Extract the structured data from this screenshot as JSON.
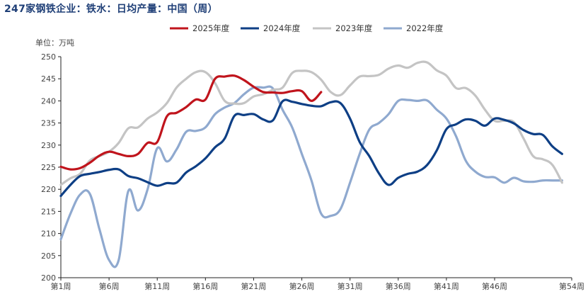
{
  "chart_data": {
    "type": "line",
    "title": "247家钢铁企业：铁水：日均产量：中国（周）",
    "unit_label": "单位：万吨",
    "xlabel": "",
    "ylabel": "",
    "x_ticks": [
      "第1周",
      "第6周",
      "第11周",
      "第16周",
      "第21周",
      "第26周",
      "第31周",
      "第36周",
      "第41周",
      "第46周",
      "第54周"
    ],
    "y_ticks": [
      "250",
      "245",
      "240",
      "235",
      "230",
      "225",
      "220",
      "215",
      "210",
      "205",
      "200"
    ],
    "ylim": [
      200,
      250
    ],
    "xlim": [
      1,
      54
    ],
    "grid": false,
    "legend_position": "top",
    "series": [
      {
        "name": "2025年度",
        "color": "#c0141c",
        "x": [
          1,
          2,
          3,
          4,
          5,
          6,
          7,
          8,
          9,
          10,
          11,
          12,
          13,
          14,
          15,
          16,
          17,
          18,
          19,
          20,
          21,
          22,
          23,
          24,
          25,
          26,
          27,
          28
        ],
        "values": [
          225.1,
          224.5,
          224.8,
          226.0,
          227.6,
          228.5,
          228.0,
          227.5,
          228.0,
          230.5,
          230.7,
          236.5,
          237.3,
          238.6,
          240.3,
          240.3,
          245.0,
          245.5,
          245.7,
          244.7,
          243.2,
          242.0,
          241.9,
          241.8,
          242.2,
          242.2,
          240.0,
          242.0
        ]
      },
      {
        "name": "2024年度",
        "color": "#0e3f85",
        "x": [
          1,
          2,
          3,
          4,
          5,
          6,
          7,
          8,
          9,
          10,
          11,
          12,
          13,
          14,
          15,
          16,
          17,
          18,
          19,
          20,
          21,
          22,
          23,
          24,
          25,
          26,
          27,
          28,
          29,
          30,
          31,
          32,
          33,
          34,
          35,
          36,
          37,
          38,
          39,
          40,
          41,
          42,
          43,
          44,
          45,
          46,
          47,
          48,
          49,
          50,
          51,
          52,
          53
        ],
        "values": [
          218.5,
          221.0,
          223.0,
          223.5,
          223.9,
          224.4,
          224.5,
          223.0,
          222.5,
          221.6,
          220.8,
          221.4,
          221.5,
          223.8,
          225.2,
          227.0,
          229.5,
          231.5,
          236.6,
          236.8,
          237.0,
          235.8,
          235.6,
          239.9,
          239.8,
          239.3,
          238.9,
          238.8,
          239.7,
          239.5,
          236.0,
          230.7,
          227.5,
          223.6,
          221.0,
          222.6,
          223.5,
          224.0,
          225.5,
          228.8,
          233.6,
          234.7,
          235.8,
          235.5,
          234.4,
          236.0,
          235.7,
          234.9,
          233.4,
          232.5,
          232.3,
          229.7,
          228.0
        ]
      },
      {
        "name": "2023年度",
        "color": "#c4c4c4",
        "x": [
          1,
          2,
          3,
          4,
          5,
          6,
          7,
          8,
          9,
          10,
          11,
          12,
          13,
          14,
          15,
          16,
          17,
          18,
          19,
          20,
          21,
          22,
          23,
          24,
          25,
          26,
          27,
          28,
          29,
          30,
          31,
          32,
          33,
          34,
          35,
          36,
          37,
          38,
          39,
          40,
          41,
          42,
          43,
          44,
          45,
          46,
          47,
          48,
          49,
          50,
          51,
          52,
          53
        ],
        "values": [
          221.0,
          222.5,
          223.5,
          226.5,
          227.5,
          228.5,
          230.5,
          233.8,
          234.0,
          236.0,
          237.4,
          239.5,
          243.0,
          245.0,
          246.5,
          246.5,
          244.0,
          240.0,
          239.4,
          239.5,
          241.0,
          241.5,
          242.5,
          243.0,
          246.3,
          246.8,
          246.5,
          244.8,
          242.0,
          241.3,
          243.5,
          245.5,
          245.6,
          245.9,
          247.3,
          248.0,
          247.5,
          248.6,
          248.7,
          246.9,
          245.7,
          242.9,
          242.9,
          241.2,
          238.0,
          235.5,
          235.5,
          235.2,
          231.5,
          227.5,
          226.8,
          225.5,
          221.5
        ]
      },
      {
        "name": "2022年度",
        "color": "#8fa9cf",
        "x": [
          1,
          2,
          3,
          4,
          5,
          6,
          7,
          8,
          9,
          10,
          11,
          12,
          13,
          14,
          15,
          16,
          17,
          18,
          19,
          20,
          21,
          22,
          23,
          24,
          25,
          26,
          27,
          28,
          29,
          30,
          31,
          32,
          33,
          34,
          35,
          36,
          37,
          38,
          39,
          40,
          41,
          42,
          43,
          44,
          45,
          46,
          47,
          48,
          49,
          50,
          51,
          52,
          53
        ],
        "values": [
          208.7,
          214.5,
          218.8,
          219.0,
          211.0,
          204.0,
          204.0,
          219.6,
          215.2,
          220.0,
          229.3,
          226.3,
          229.0,
          233.0,
          233.2,
          234.0,
          237.0,
          238.5,
          239.5,
          241.5,
          243.0,
          243.0,
          242.8,
          238.0,
          234.0,
          228.0,
          222.0,
          214.5,
          214.0,
          215.5,
          221.5,
          228.0,
          233.5,
          235.0,
          237.0,
          240.0,
          240.2,
          240.0,
          240.1,
          238.0,
          236.0,
          232.0,
          226.5,
          224.0,
          222.8,
          222.7,
          221.5,
          222.6,
          221.8,
          221.7,
          222.0,
          222.0,
          222.0
        ]
      }
    ]
  }
}
